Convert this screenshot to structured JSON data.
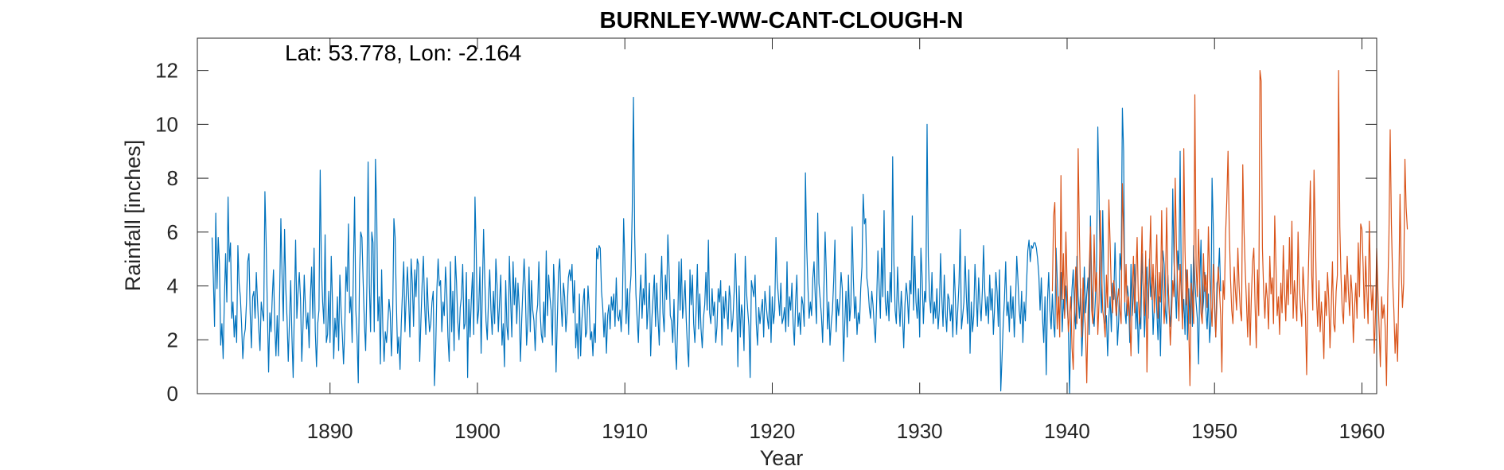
{
  "chart_data": {
    "type": "line",
    "title": "BURNLEY-WW-CANT-CLOUGH-N",
    "annotation": "Lat: 53.778, Lon: -2.164",
    "xlabel": "Year",
    "ylabel": "Rainfall [inches]",
    "xlim": [
      1881,
      1961
    ],
    "ylim": [
      0,
      13.2
    ],
    "xticks": [
      1890,
      1900,
      1910,
      1920,
      1930,
      1940,
      1950,
      1960
    ],
    "yticks": [
      0,
      2,
      4,
      6,
      8,
      10,
      12
    ],
    "grid": false,
    "legend": "none",
    "series": [
      {
        "color": "#0072BD",
        "start_year": 1882.0,
        "step_years": 0.0833333,
        "values": [
          5.8,
          4.3,
          2.5,
          6.7,
          3.9,
          5.8,
          4.8,
          1.8,
          2.6,
          1.3,
          3.5,
          5.2,
          3.4,
          7.3,
          4.9,
          5.6,
          2.8,
          3.4,
          2.1,
          2.9,
          1.9,
          5.5,
          4.1,
          3.6,
          2.6,
          1.3,
          2.1,
          2.4,
          3.4,
          4.9,
          5.2,
          3.0,
          1.7,
          3.6,
          3.8,
          2.8,
          4.5,
          3.4,
          2.4,
          1.6,
          3.4,
          3.0,
          2.7,
          7.5,
          5.6,
          3.1,
          0.8,
          3.0,
          2.3,
          3.6,
          4.6,
          2.5,
          1.4,
          2.9,
          1.4,
          3.7,
          6.5,
          4.3,
          2.7,
          6.1,
          3.9,
          2.8,
          1.2,
          2.7,
          4.2,
          2.1,
          0.6,
          3.3,
          5.7,
          2.8,
          3.8,
          4.5,
          3.5,
          1.2,
          2.5,
          4.4,
          3.2,
          2.4,
          3.0,
          1.7,
          3.6,
          4.7,
          2.8,
          5.4,
          2.3,
          1.0,
          2.6,
          3.1,
          8.3,
          4.7,
          3.4,
          2.6,
          5.9,
          1.9,
          2.2,
          3.8,
          1.9,
          5.1,
          3.4,
          1.3,
          2.8,
          2.1,
          3.6,
          1.6,
          4.4,
          3.1,
          2.2,
          1.1,
          2.4,
          4.7,
          3.8,
          6.3,
          3.0,
          3.6,
          1.9,
          4.5,
          7.3,
          3.1,
          2.1,
          0.4,
          4.4,
          6.0,
          5.8,
          4.1,
          2.6,
          1.6,
          4.0,
          8.6,
          4.1,
          2.3,
          6.0,
          5.6,
          2.3,
          8.7,
          6.7,
          2.7,
          3.6,
          1.1,
          4.6,
          2.4,
          1.2,
          2.3,
          1.9,
          2.6,
          3.5,
          3.0,
          1.4,
          2.9,
          6.5,
          5.8,
          3.4,
          1.5,
          2.1,
          0.9,
          2.6,
          3.8,
          4.9,
          2.3,
          3.6,
          4.7,
          3.5,
          2.1,
          5.0,
          4.1,
          2.5,
          4.6,
          3.6,
          5.0,
          4.8,
          1.2,
          2.7,
          4.1,
          5.1,
          3.3,
          2.2,
          4.3,
          3.1,
          2.3,
          2.6,
          3.4,
          3.8,
          0.3,
          1.6,
          3.9,
          5.0,
          4.0,
          4.2,
          2.3,
          3.4,
          2.9,
          4.7,
          3.8,
          2.1,
          1.2,
          4.9,
          2.3,
          3.8,
          1.6,
          5.1,
          4.1,
          2.7,
          2.0,
          3.2,
          3.6,
          4.8,
          2.4,
          2.6,
          4.5,
          0.6,
          3.5,
          2.1,
          3.5,
          4.5,
          2.2,
          7.3,
          5.3,
          2.6,
          3.1,
          4.7,
          1.5,
          3.8,
          6.1,
          4.2,
          2.7,
          2.0,
          3.5,
          4.6,
          3.1,
          2.2,
          3.8,
          2.6,
          5.0,
          4.0,
          2.3,
          3.4,
          4.4,
          1.8,
          2.6,
          1.0,
          4.2,
          2.5,
          2.0,
          5.1,
          3.5,
          2.1,
          4.9,
          3.3,
          4.3,
          2.6,
          4.1,
          3.2,
          1.2,
          2.7,
          3.9,
          5.0,
          3.8,
          1.8,
          2.6,
          4.7,
          2.3,
          4.2,
          3.1,
          2.7,
          1.6,
          2.9,
          3.3,
          4.9,
          3.1,
          2.2,
          1.9,
          3.4,
          2.1,
          5.3,
          2.9,
          4.4,
          3.6,
          3.1,
          1.8,
          4.8,
          3.7,
          0.8,
          2.7,
          4.5,
          5.0,
          3.4,
          2.5,
          4.1,
          3.6,
          2.3,
          3.0,
          4.3,
          4.6,
          4.2,
          4.8,
          3.0,
          4.2,
          1.7,
          2.6,
          1.3,
          3.7,
          1.4,
          2.7,
          3.4,
          3.9,
          2.1,
          2.3,
          4.0,
          3.2,
          2.0,
          2.3,
          1.4,
          2.6,
          1.9,
          5.4,
          5.0,
          5.5,
          5.4,
          3.8,
          3.2,
          2.1,
          3.0,
          1.5,
          2.9,
          3.3,
          2.4,
          3.6,
          3.1,
          3.7,
          2.5,
          4.3,
          2.9,
          2.7,
          3.1,
          2.3,
          3.3,
          6.5,
          4.9,
          2.6,
          3.9,
          2.2,
          3.7,
          4.4,
          6.8,
          11.0,
          5.9,
          3.7,
          2.8,
          1.9,
          3.5,
          4.4,
          2.8,
          3.9,
          3.3,
          5.2,
          2.4,
          3.2,
          4.1,
          1.4,
          2.8,
          3.6,
          4.4,
          2.5,
          4.1,
          2.8,
          1.8,
          3.9,
          5.1,
          3.0,
          2.3,
          4.4,
          3.5,
          5.9,
          4.6,
          2.9,
          2.7,
          1.9,
          3.5,
          1.8,
          0.9,
          2.6,
          4.9,
          3.1,
          5.0,
          2.8,
          3.4,
          4.2,
          2.7,
          1.7,
          1.0,
          4.6,
          3.3,
          4.4,
          2.6,
          1.9,
          3.1,
          4.8,
          2.4,
          3.7,
          2.4,
          1.7,
          2.8,
          3.3,
          4.5,
          3.1,
          5.7,
          3.0,
          2.6,
          3.9,
          2.9,
          3.4,
          1.9,
          2.5,
          3.9,
          3.4,
          4.2,
          1.8,
          3.6,
          2.8,
          3.8,
          3.1,
          2.4,
          4.0,
          3.5,
          2.3,
          2.8,
          3.8,
          5.2,
          3.5,
          1.0,
          4.0,
          2.1,
          3.3,
          2.9,
          1.6,
          5.1,
          3.8,
          3.1,
          2.5,
          0.6,
          4.2,
          3.9,
          3.6,
          4.4,
          2.6,
          1.8,
          3.2,
          2.6,
          3.1,
          3.5,
          2.1,
          3.8,
          3.3,
          2.8,
          2.4,
          4.0,
          1.9,
          3.6,
          2.6,
          3.1,
          5.8,
          4.2,
          3.6,
          2.9,
          4.1,
          2.6,
          2.8,
          3.2,
          2.3,
          4.9,
          2.5,
          3.6,
          3.1,
          4.1,
          2.6,
          1.8,
          3.4,
          4.4,
          2.5,
          3.0,
          2.2,
          3.6,
          3.3,
          2.5,
          8.2,
          5.5,
          4.0,
          2.8,
          3.4,
          2.9,
          4.3,
          4.9,
          3.6,
          2.6,
          6.7,
          4.1,
          3.5,
          2.9,
          1.9,
          3.8,
          6.0,
          4.5,
          2.4,
          3.4,
          1.8,
          2.6,
          3.1,
          4.2,
          5.7,
          2.3,
          3.5,
          2.9,
          3.4,
          4.5,
          3.9,
          1.2,
          2.6,
          3.8,
          2.1,
          4.4,
          2.7,
          3.3,
          6.2,
          4.3,
          2.8,
          3.6,
          2.2,
          3.0,
          2.6,
          3.9,
          4.7,
          7.4,
          6.3,
          6.5,
          4.3,
          3.9,
          3.2,
          2.8,
          3.8,
          3.3,
          2.5,
          1.9,
          3.5,
          5.3,
          4.0,
          2.8,
          5.4,
          3.6,
          6.8,
          3.4,
          2.9,
          3.8,
          2.7,
          4.5,
          3.4,
          8.8,
          4.9,
          3.1,
          2.6,
          4.7,
          3.4,
          2.5,
          3.8,
          2.9,
          1.7,
          3.3,
          4.1,
          3.6,
          2.6,
          4.2,
          3.7,
          6.6,
          3.1,
          5.1,
          3.4,
          2.8,
          3.9,
          2.1,
          5.4,
          4.3,
          2.6,
          3.8,
          3.4,
          10.0,
          5.1,
          3.6,
          3.0,
          4.5,
          2.6,
          3.4,
          2.8,
          3.9,
          2.4,
          3.1,
          5.2,
          3.6,
          2.5,
          4.4,
          3.0,
          2.3,
          3.7,
          3.5,
          2.7,
          3.3,
          2.1,
          4.8,
          3.6,
          2.2,
          3.1,
          4.1,
          6.1,
          2.4,
          2.9,
          3.4,
          5.1,
          3.6,
          2.6,
          4.6,
          1.5,
          3.4,
          2.3,
          2.9,
          4.8,
          3.7,
          2.5,
          4.3,
          3.4,
          2.7,
          3.8,
          5.5,
          3.8,
          2.9,
          3.6,
          2.6,
          4.4,
          3.1,
          3.9,
          2.2,
          3.2,
          4.5,
          3.8,
          2.5,
          4.6,
          0.1,
          1.3,
          2.6,
          3.5,
          4.9,
          2.9,
          3.4,
          2.3,
          4.0,
          2.8,
          3.6,
          2.1,
          3.3,
          5.1,
          4.2,
          3.1,
          2.6,
          3.8,
          1.9,
          3.4,
          2.7,
          4.1,
          5.3,
          5.7,
          4.9,
          5.5,
          5.4,
          5.6,
          5.6,
          5.4,
          5.0,
          4.4,
          3.1,
          4.3,
          2.8,
          1.9,
          3.6,
          0.7,
          3.4,
          4.5,
          3.1,
          2.4,
          3.7,
          2.6,
          2.1,
          5.4,
          4.2,
          3.2,
          2.7,
          4.5,
          2.3,
          3.5,
          2.9,
          4.0,
          3.3,
          2.5,
          0.0,
          2.6,
          3.9,
          4.6,
          3.1,
          2.4,
          5.1,
          3.6,
          2.8,
          3.9,
          1.4,
          2.6,
          4.7,
          3.0,
          3.7,
          4.3,
          2.2,
          6.6,
          4.1,
          3.0,
          2.5,
          3.5,
          4.8,
          9.9,
          7.4,
          4.1,
          3.0,
          6.8,
          4.3,
          2.6,
          2.9,
          1.4,
          2.8,
          3.6,
          2.3,
          4.1,
          3.5,
          5.6,
          3.9,
          1.8,
          2.7,
          5.2,
          4.6,
          10.6,
          9.0,
          3.1,
          2.6,
          4.0,
          3.6,
          1.9,
          4.8,
          2.9,
          3.7,
          4.8,
          2.4,
          3.4,
          1.5,
          3.0,
          2.4,
          5.2,
          3.9,
          2.1,
          3.4,
          4.7,
          2.8,
          5.0,
          3.6,
          4.3,
          2.2,
          3.3,
          4.4,
          3.1,
          2.0,
          3.6,
          1.4,
          3.9,
          5.3,
          4.8,
          3.1,
          2.6,
          4.4,
          3.1,
          2.5,
          3.6,
          7.6,
          4.9,
          3.9,
          2.8,
          5.3,
          4.6,
          9.0,
          3.9,
          2.8,
          3.5,
          2.2,
          4.6,
          2.0,
          3.9,
          2.6,
          4.8,
          2.5,
          5.5,
          4.2,
          3.4,
          2.8,
          1.1,
          4.2,
          5.7,
          2.9,
          3.4,
          4.5,
          3.1,
          2.4,
          3.7,
          1.9,
          2.7,
          8.0,
          6.2,
          3.2,
          2.1,
          4.1,
          4.3,
          5.4,
          3.8
        ]
      },
      {
        "color": "#D95319",
        "start_year": 1939.0,
        "step_years": 0.0833333,
        "values": [
          3.8,
          6.6,
          7.1,
          4.1,
          2.4,
          3.6,
          2.1,
          8.1,
          3.5,
          5.2,
          2.8,
          6.0,
          4.1,
          2.3,
          2.9,
          3.6,
          1.7,
          0.9,
          3.2,
          4.7,
          2.6,
          9.1,
          5.9,
          3.4,
          2.1,
          4.3,
          3.0,
          2.4,
          0.4,
          2.9,
          4.6,
          6.2,
          3.1,
          2.6,
          5.9,
          3.8,
          4.5,
          2.2,
          3.4,
          6.8,
          4.6,
          3.1,
          2.7,
          2.1,
          4.4,
          3.2,
          7.2,
          5.6,
          3.8,
          3.0,
          4.2,
          3.6,
          2.9,
          3.5,
          3.9,
          3.1,
          2.6,
          7.8,
          6.0,
          3.4,
          4.8,
          2.9,
          3.6,
          2.8,
          1.4,
          3.8,
          5.1,
          3.0,
          4.3,
          5.8,
          3.5,
          2.6,
          4.1,
          6.2,
          3.7,
          2.9,
          5.3,
          0.8,
          3.4,
          4.6,
          6.6,
          3.5,
          4.8,
          3.0,
          4.3,
          5.9,
          2.8,
          4.5,
          3.4,
          6.8,
          4.0,
          2.6,
          3.7,
          6.9,
          4.4,
          3.2,
          1.8,
          2.9,
          4.2,
          3.6,
          8.0,
          5.5,
          3.9,
          2.7,
          4.8,
          3.6,
          2.4,
          9.1,
          5.3,
          3.3,
          4.6,
          2.5,
          0.3,
          4.1,
          3.5,
          2.6,
          11.1,
          4.8,
          3.6,
          6.1,
          4.1,
          3.0,
          2.6,
          5.2,
          3.8,
          4.4,
          3.2,
          6.2,
          4.5,
          3.4,
          2.5,
          4.8,
          3.6,
          2.1,
          3.4,
          4.7,
          3.9,
          2.9,
          0.8,
          4.2,
          3.5,
          5.9,
          7.2,
          9.0,
          6.1,
          4.3,
          3.1,
          2.6,
          4.7,
          3.8,
          3.1,
          5.4,
          4.0,
          3.1,
          2.7,
          8.5,
          6.1,
          4.6,
          3.4,
          2.1,
          4.1,
          1.8,
          3.6,
          4.9,
          5.4,
          3.3,
          1.7,
          4.6,
          2.9,
          12.0,
          11.6,
          5.4,
          3.8,
          2.8,
          4.1,
          3.5,
          2.4,
          5.1,
          3.7,
          4.3,
          2.6,
          6.6,
          4.8,
          2.9,
          3.6,
          2.2,
          4.1,
          3.0,
          5.5,
          3.8,
          2.7,
          4.6,
          3.3,
          5.8,
          3.7,
          6.4,
          2.8,
          4.2,
          3.5,
          2.7,
          6.0,
          4.1,
          3.2,
          2.5,
          4.7,
          3.8,
          2.9,
          0.7,
          3.7,
          5.8,
          7.9,
          4.6,
          3.1,
          8.3,
          6.1,
          3.6,
          2.5,
          4.2,
          2.3,
          3.4,
          2.6,
          1.3,
          3.8,
          2.9,
          4.5,
          3.5,
          1.7,
          3.2,
          4.9,
          2.6,
          2.3,
          3.8,
          4.4,
          12.0,
          6.2,
          4.3,
          3.1,
          2.6,
          4.4,
          3.4,
          5.1,
          3.8,
          2.9,
          4.4,
          3.7,
          1.9,
          3.2,
          4.1,
          2.8,
          5.6,
          3.6,
          6.3,
          6.1,
          4.7,
          2.8,
          5.1,
          3.8,
          2.6,
          6.4,
          4.2,
          3.1,
          4.0,
          1.5,
          2.9,
          5.4,
          3.8,
          2.4,
          1.0,
          3.6,
          2.8,
          3.3,
          2.4,
          0.3,
          3.7,
          5.9,
          9.8,
          6.3,
          4.2,
          3.1,
          1.5,
          2.6,
          1.2,
          3.8,
          7.4,
          4.6,
          3.2,
          4.1,
          8.7,
          6.9,
          6.1
        ]
      }
    ]
  }
}
